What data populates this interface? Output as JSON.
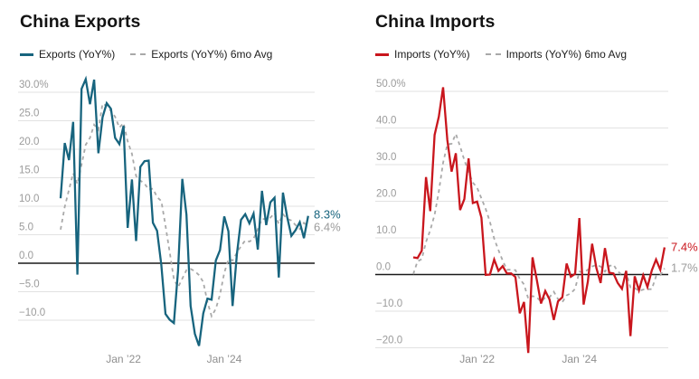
{
  "chart_data": [
    {
      "type": "line",
      "title": "China Exports",
      "x_unit": "month",
      "grid": true,
      "legend_position": "top",
      "ylim": [
        -16,
        33
      ],
      "series": [
        {
          "name": "Exports (YoY%)",
          "color": "#17647E",
          "style": "solid",
          "values": [
            11.4,
            21.1,
            18.1,
            24.8,
            -2.0,
            30.6,
            32.3,
            27.9,
            32.2,
            19.3,
            25.6,
            28.1,
            27.1,
            22.0,
            20.9,
            24.1,
            6.2,
            14.7,
            3.9,
            16.9,
            17.9,
            18.0,
            7.1,
            5.7,
            -0.3,
            -8.9,
            -9.9,
            -10.5,
            -1.3,
            14.8,
            8.5,
            -7.5,
            -12.4,
            -14.5,
            -8.8,
            -6.2,
            -6.4,
            0.5,
            2.3,
            8.2,
            5.6,
            -7.5,
            1.5,
            7.6,
            8.6,
            7.0,
            8.7,
            2.4,
            12.7,
            6.7,
            10.7,
            11.5,
            -2.5,
            12.4,
            8.1,
            4.8,
            5.8,
            7.2,
            4.4,
            8.3
          ]
        },
        {
          "name": "Exports (YoY%) 6mo Avg",
          "color": "#A9A9A9",
          "style": "dashed",
          "values": [
            5.9,
            9.9,
            12.9,
            15.8,
            13.9,
            17.3,
            20.8,
            22.0,
            24.3,
            23.4,
            28.0,
            27.6,
            26.7,
            25.7,
            23.8,
            24.6,
            21.4,
            19.2,
            15.3,
            14.5,
            14.0,
            12.9,
            13.1,
            11.6,
            10.9,
            6.6,
            2.0,
            -2.8,
            -4.2,
            -2.7,
            -1.2,
            -1.0,
            -1.4,
            -2.1,
            -3.3,
            -6.8,
            -9.3,
            -8.0,
            -5.5,
            -1.7,
            0.7,
            0.5,
            1.8,
            3.0,
            4.0,
            3.8,
            4.3,
            6.0,
            7.8,
            7.7,
            8.0,
            8.8,
            6.9,
            8.6,
            7.8,
            7.5,
            6.7,
            6.0,
            7.1,
            6.4
          ]
        }
      ],
      "y_ticks": [
        {
          "v": 30,
          "label": "30.0%"
        },
        {
          "v": 25,
          "label": "25.0"
        },
        {
          "v": 20,
          "label": "20.0"
        },
        {
          "v": 15,
          "label": "15.0"
        },
        {
          "v": 10,
          "label": "10.0"
        },
        {
          "v": 5,
          "label": "5.0"
        },
        {
          "v": 0,
          "label": "0.0"
        },
        {
          "v": -5,
          "label": "−5.0"
        },
        {
          "v": -10,
          "label": "−10.0"
        }
      ],
      "x_ticks": [
        {
          "i": 15,
          "label": "Jan ’22"
        },
        {
          "i": 39,
          "label": "Jan ’24"
        }
      ],
      "end_labels": {
        "main": "8.3%",
        "avg": "6.4%"
      }
    },
    {
      "type": "line",
      "title": "China Imports",
      "x_unit": "month",
      "grid": true,
      "legend_position": "top",
      "ylim": [
        -24,
        53
      ],
      "series": [
        {
          "name": "Imports (YoY%)",
          "color": "#C9161D",
          "style": "solid",
          "values": [
            4.7,
            4.5,
            6.5,
            26.6,
            17.3,
            38.1,
            43.1,
            51.1,
            36.7,
            28.1,
            33.1,
            17.6,
            20.6,
            31.7,
            19.5,
            19.9,
            15.5,
            -0.1,
            0.0,
            4.1,
            1.0,
            2.3,
            0.3,
            0.3,
            -0.7,
            -10.6,
            -7.5,
            -21.4,
            4.7,
            -1.4,
            -7.9,
            -4.5,
            -6.8,
            -12.4,
            -7.3,
            -6.2,
            3.0,
            -0.6,
            0.2,
            15.4,
            -8.2,
            -1.9,
            8.4,
            1.8,
            -2.3,
            7.2,
            0.5,
            0.3,
            -2.3,
            -3.9,
            1.0,
            -16.8,
            -0.5,
            -4.3,
            -0.2,
            -3.4,
            1.1,
            4.1,
            1.3,
            7.4
          ]
        },
        {
          "name": "Imports (YoY%) 6mo Avg",
          "color": "#A9A9A9",
          "style": "dashed",
          "values": [
            0.1,
            3.6,
            4.2,
            8.9,
            12.1,
            16.3,
            22.7,
            30.5,
            35.5,
            35.7,
            38.4,
            35.0,
            31.2,
            28.0,
            25.1,
            23.7,
            20.8,
            17.9,
            14.4,
            9.8,
            6.7,
            3.8,
            1.3,
            1.3,
            1.2,
            -1.2,
            -2.7,
            -6.6,
            -5.9,
            -6.2,
            -7.4,
            -6.3,
            -6.2,
            -4.7,
            -6.7,
            -7.5,
            -5.7,
            -5.1,
            -3.9,
            0.8,
            0.6,
            1.3,
            2.2,
            2.6,
            2.2,
            0.8,
            2.3,
            2.7,
            0.9,
            -0.1,
            0.5,
            -3.5,
            -3.7,
            -4.5,
            -4.1,
            -4.0,
            -4.0,
            -0.5,
            -0.2,
            1.7
          ]
        }
      ],
      "y_ticks": [
        {
          "v": 50,
          "label": "50.0%"
        },
        {
          "v": 40,
          "label": "40.0"
        },
        {
          "v": 30,
          "label": "30.0"
        },
        {
          "v": 20,
          "label": "20.0"
        },
        {
          "v": 10,
          "label": "10.0"
        },
        {
          "v": 0,
          "label": "0.0"
        },
        {
          "v": -10,
          "label": "−10.0"
        },
        {
          "v": -20,
          "label": "−20.0"
        }
      ],
      "x_ticks": [
        {
          "i": 15,
          "label": "Jan ’22"
        },
        {
          "i": 39,
          "label": "Jan ’24"
        }
      ],
      "end_labels": {
        "main": "7.4%",
        "avg": "1.7%"
      }
    }
  ]
}
